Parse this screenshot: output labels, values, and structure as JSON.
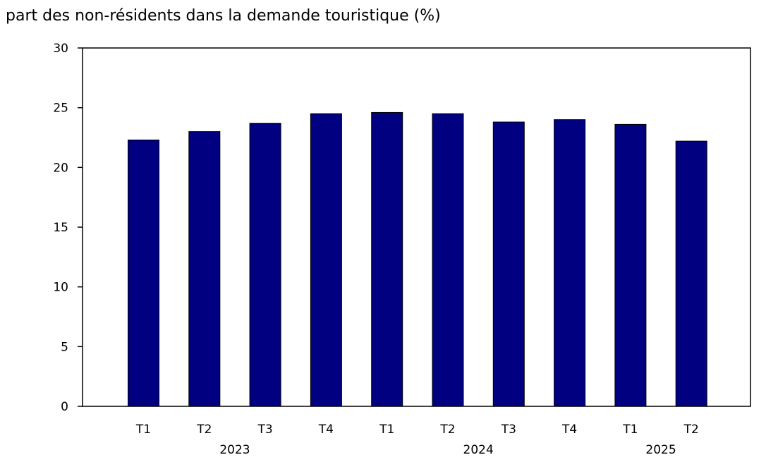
{
  "chart_data": {
    "type": "bar",
    "title": "part des non-résidents dans la demande touristique (%)",
    "xlabel": "",
    "ylabel": "",
    "ylim": [
      0,
      30
    ],
    "yticks": [
      0,
      5,
      10,
      15,
      20,
      25,
      30
    ],
    "categories": [
      "T1",
      "T2",
      "T3",
      "T4",
      "T1",
      "T2",
      "T3",
      "T4",
      "T1",
      "T2"
    ],
    "year_groups": [
      {
        "label": "2023",
        "start": 0,
        "end": 3
      },
      {
        "label": "2024",
        "start": 4,
        "end": 7
      },
      {
        "label": "2025",
        "start": 8,
        "end": 9
      }
    ],
    "series": [
      {
        "name": "part des non-résidents dans la demande touristique",
        "values": [
          22.3,
          23.0,
          23.7,
          24.5,
          24.6,
          24.5,
          23.8,
          24.0,
          23.6,
          22.2
        ]
      }
    ],
    "grid": false,
    "legend": "none"
  },
  "colors": {
    "bar_fill": "#000080",
    "bar_stroke": "#000000",
    "axis": "#000000"
  }
}
